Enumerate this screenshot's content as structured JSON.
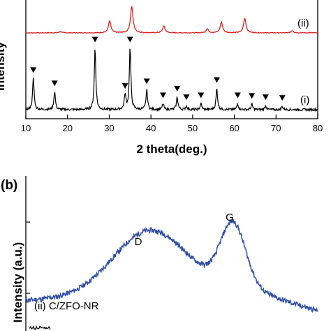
{
  "chart_data": [
    {
      "type": "line",
      "panel": "",
      "xlabel": "2 theta(deg.)",
      "ylabel": "Intensity",
      "xlim": [
        10,
        80
      ],
      "xticks": [
        "10",
        "20",
        "30",
        "40",
        "50",
        "60",
        "70",
        "80"
      ],
      "series": [
        {
          "name": "(ii)",
          "color": "#e02020",
          "peaks": [
            [
              18.3,
              0.05
            ],
            [
              30.1,
              0.45
            ],
            [
              35.4,
              1.0
            ],
            [
              43.1,
              0.25
            ],
            [
              53.5,
              0.15
            ],
            [
              56.9,
              0.4
            ],
            [
              62.5,
              0.55
            ],
            [
              73.9,
              0.08
            ]
          ]
        },
        {
          "name": "(i)",
          "color": "#000000",
          "peaks": [
            [
              11.8,
              0.47
            ],
            [
              16.9,
              0.27
            ],
            [
              26.6,
              0.93
            ],
            [
              33.8,
              0.23
            ],
            [
              35.0,
              0.93
            ],
            [
              39.0,
              0.3
            ],
            [
              42.9,
              0.09
            ],
            [
              46.3,
              0.19
            ],
            [
              48.5,
              0.06
            ],
            [
              52.0,
              0.09
            ],
            [
              55.8,
              0.32
            ],
            [
              60.8,
              0.09
            ],
            [
              64.2,
              0.08
            ],
            [
              67.5,
              0.06
            ],
            [
              71.5,
              0.05
            ]
          ],
          "marker": "▼"
        }
      ]
    },
    {
      "type": "line",
      "panel": "(b)",
      "xlabel": "",
      "ylabel": "Intensity (a.u.)",
      "series": [
        {
          "name": "(ii) C/ZFO-NR",
          "color": "#2f4fa8",
          "peaks": [
            [
              "D",
              0.55
            ],
            [
              "G",
              0.82
            ]
          ]
        }
      ],
      "annotations": [
        "D",
        "G"
      ]
    }
  ]
}
